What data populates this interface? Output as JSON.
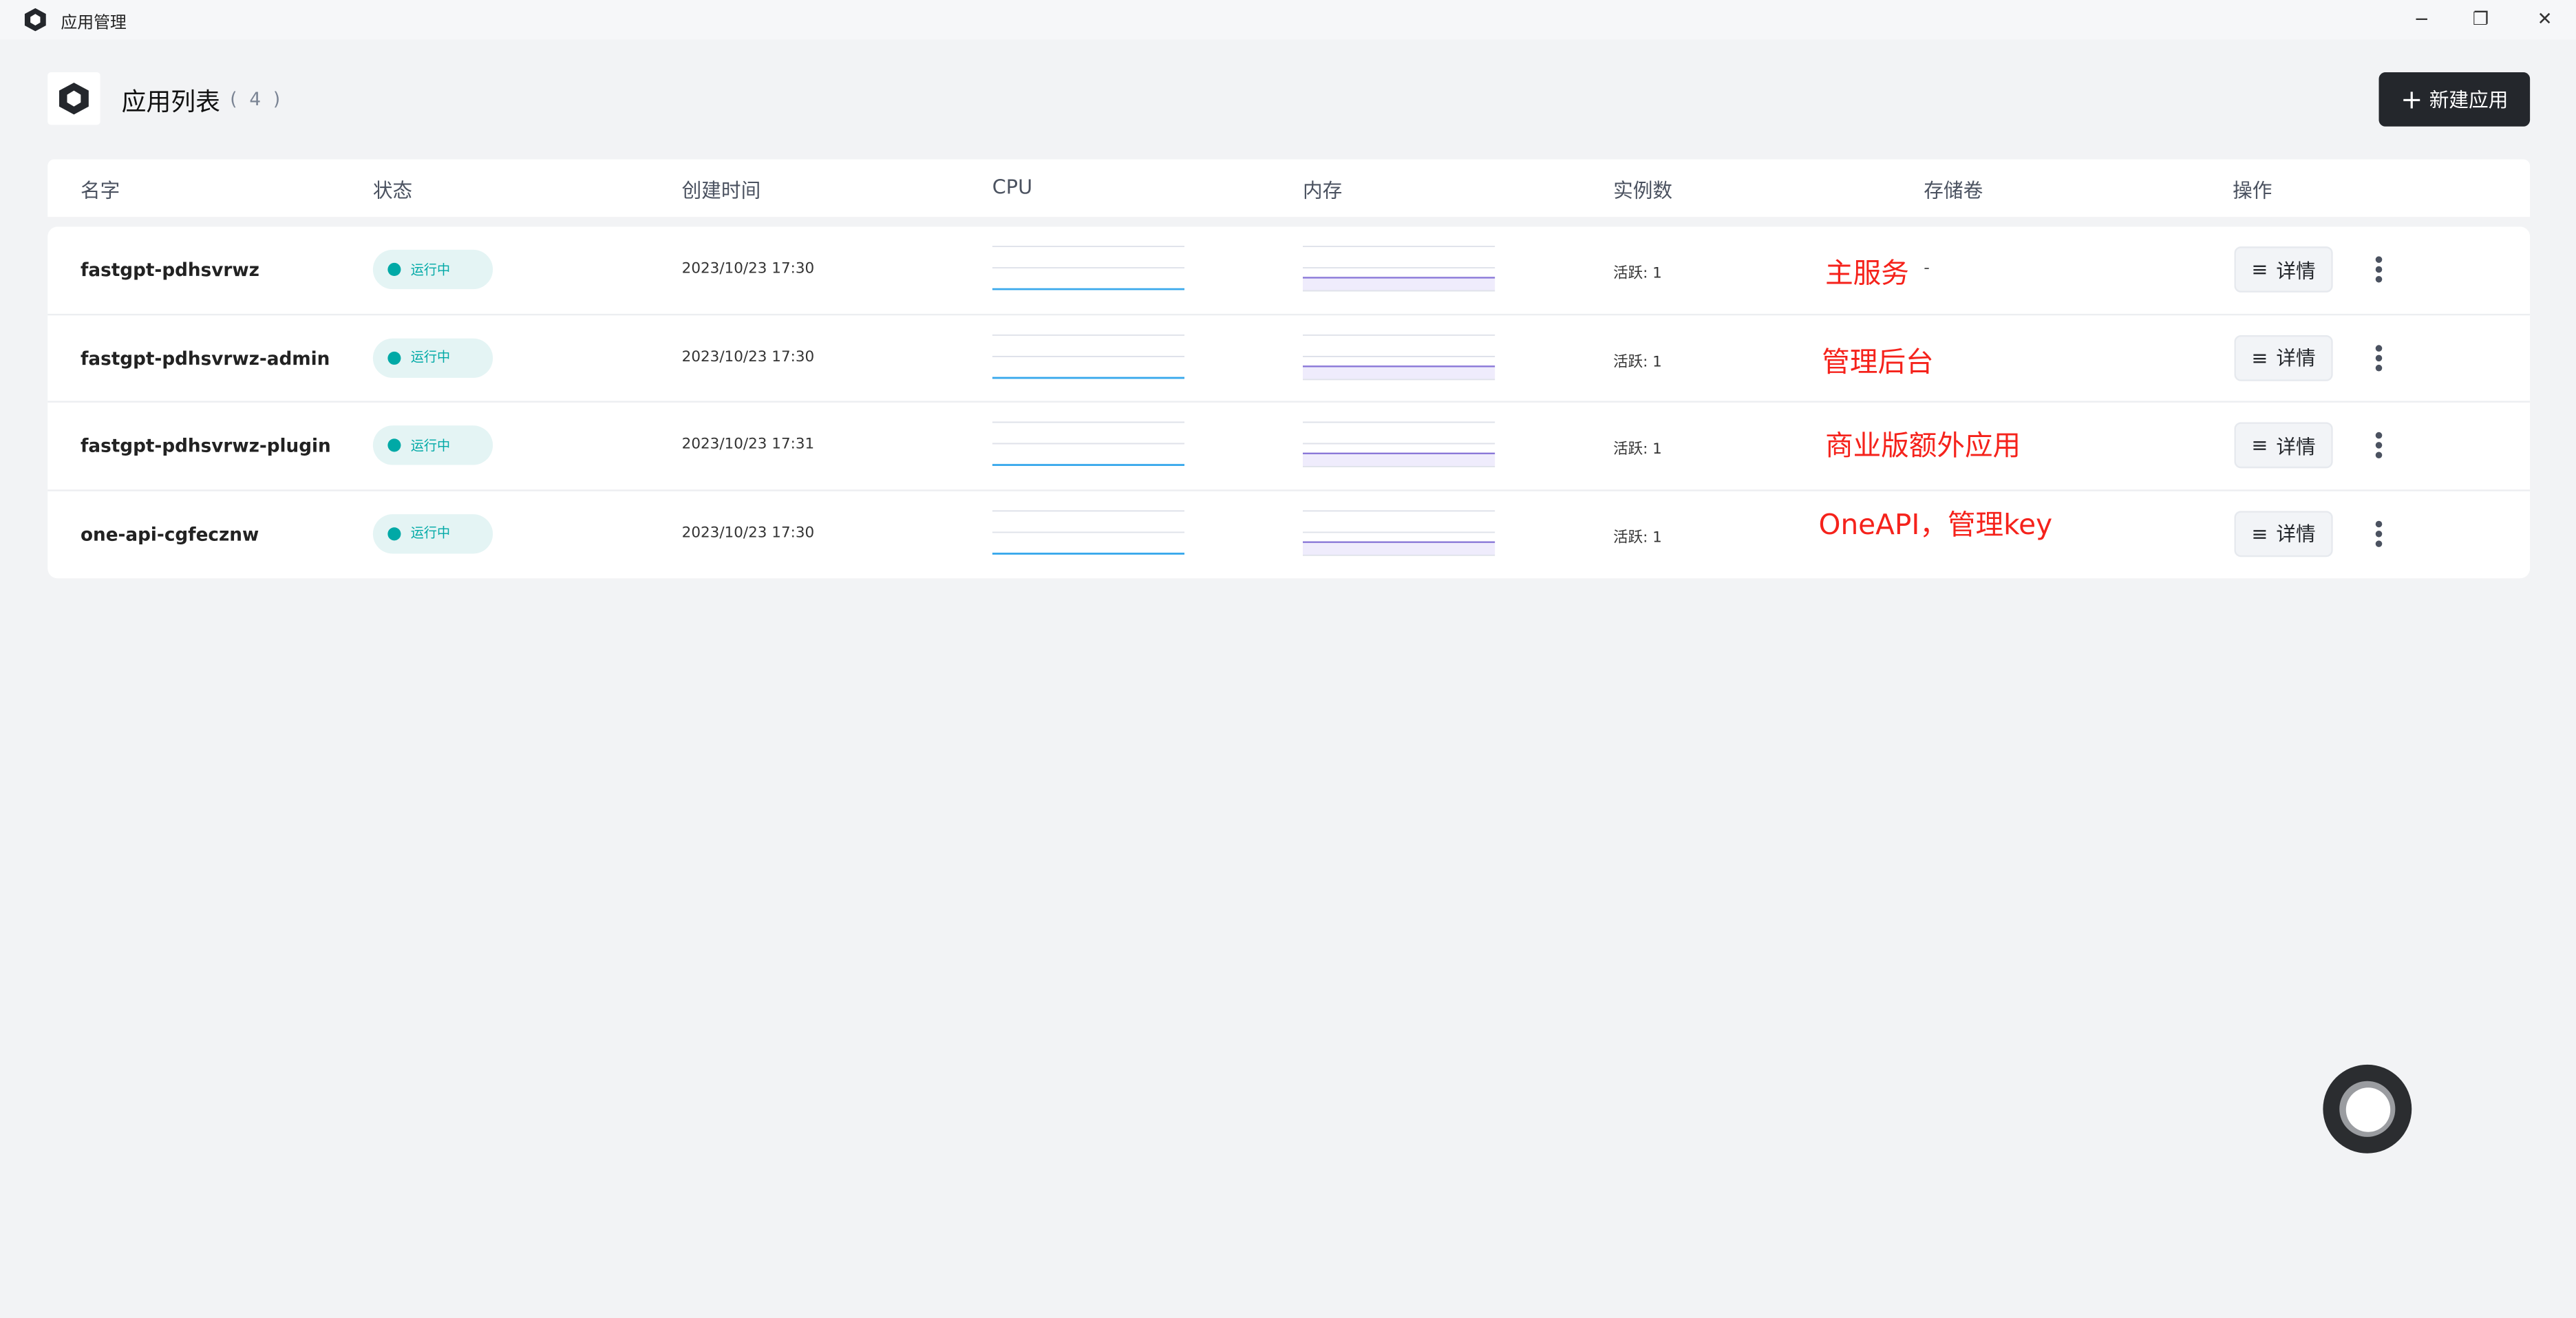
{
  "window": {
    "title": "应用管理",
    "icon": "sealos-hexagon-icon"
  },
  "header": {
    "title": "应用列表",
    "count": "( 4 )",
    "new_button": "新建应用"
  },
  "table": {
    "columns": [
      "名字",
      "状态",
      "创建时间",
      "CPU",
      "内存",
      "实例数",
      "存储卷",
      "操作"
    ],
    "rows": [
      {
        "name": "fastgpt-pdhsvrwz",
        "status": "运行中",
        "created": "2023/10/23 17:30",
        "instances": "活跃: 1",
        "storage": "-",
        "annotation": "主服务",
        "detail": "详情"
      },
      {
        "name": "fastgpt-pdhsvrwz-admin",
        "status": "运行中",
        "created": "2023/10/23 17:30",
        "instances": "活跃: 1",
        "storage": "",
        "annotation": "管理后台",
        "detail": "详情"
      },
      {
        "name": "fastgpt-pdhsvrwz-plugin",
        "status": "运行中",
        "created": "2023/10/23 17:31",
        "instances": "活跃: 1",
        "storage": "",
        "annotation": "商业版额外应用",
        "detail": "详情"
      },
      {
        "name": "one-api-cgfecznw",
        "status": "运行中",
        "created": "2023/10/23 17:30",
        "instances": "活跃: 1",
        "storage": "",
        "annotation": "OneAPI，管理key",
        "detail": "详情"
      }
    ]
  },
  "colors": {
    "status": "#00a9a6",
    "cpu_line": "#3aa9ec",
    "memory_line": "#8a78d8",
    "annotation": "#f5221b",
    "primary_button": "#24272c"
  }
}
